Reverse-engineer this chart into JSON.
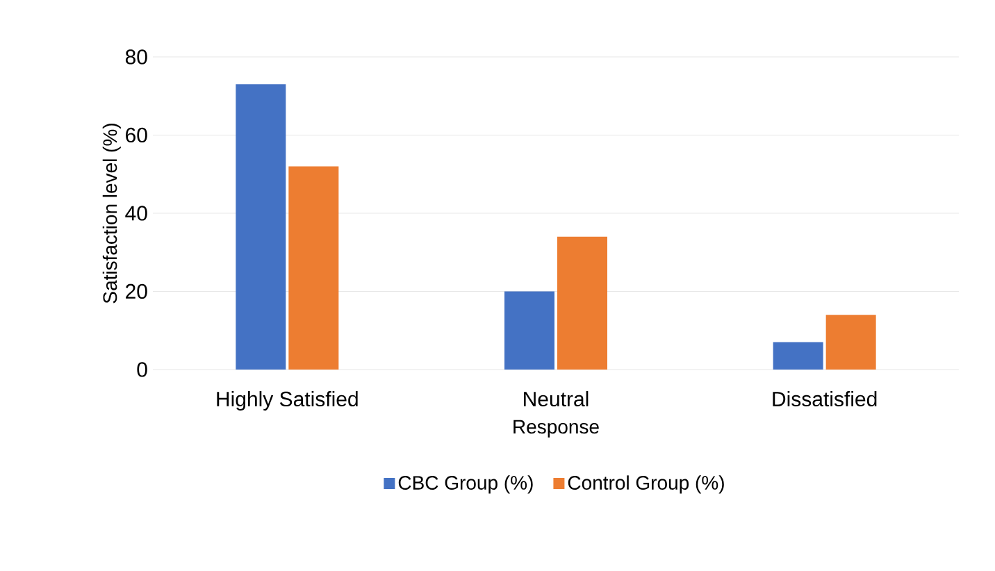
{
  "chart_data": {
    "type": "bar",
    "xlabel": "Response",
    "ylabel": "Satisfaction level (%)",
    "categories": [
      "Highly Satisfied",
      "Neutral",
      "Dissatisfied"
    ],
    "series": [
      {
        "name": "CBC Group (%)",
        "color": "#4472c4",
        "values": [
          73,
          20,
          7
        ]
      },
      {
        "name": "Control Group (%)",
        "color": "#ed7d31",
        "values": [
          52,
          34,
          14
        ]
      }
    ],
    "ylim": [
      0,
      80
    ],
    "yticks": [
      0,
      20,
      40,
      60,
      80
    ],
    "grid": "y",
    "legend": "bottom"
  }
}
